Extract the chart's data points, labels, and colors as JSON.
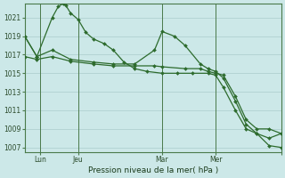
{
  "background_color": "#cce8e8",
  "grid_color": "#aacccc",
  "line_color": "#2d6b2d",
  "marker_color": "#2d6b2d",
  "xlabel": "Pression niveau de la mer( hPa )",
  "ylim": [
    1006.5,
    1022.5
  ],
  "yticks": [
    1007,
    1009,
    1011,
    1013,
    1015,
    1017,
    1019,
    1021
  ],
  "xlim": [
    0,
    168
  ],
  "xtick_positions": [
    10,
    35,
    90,
    125,
    168
  ],
  "xtick_labels": [
    "Lun",
    "Jeu",
    "Mar",
    "Mer",
    ""
  ],
  "vlines_x": [
    10,
    35,
    90,
    125
  ],
  "vline_color": "#4a7a4a",
  "series": [
    {
      "x": [
        0,
        8,
        18,
        22,
        25,
        27,
        30,
        35,
        40,
        45,
        52,
        58,
        65,
        72,
        80,
        90,
        100,
        110,
        120,
        125,
        130,
        138,
        145,
        152,
        160,
        168
      ],
      "y": [
        1019.0,
        1016.8,
        1021.0,
        1022.2,
        1022.5,
        1022.3,
        1021.5,
        1020.8,
        1019.4,
        1018.7,
        1018.2,
        1017.5,
        1016.2,
        1015.5,
        1015.2,
        1015.0,
        1015.0,
        1015.0,
        1015.0,
        1014.8,
        1013.5,
        1011.0,
        1009.0,
        1008.5,
        1007.2,
        1007.0
      ]
    },
    {
      "x": [
        0,
        8,
        18,
        30,
        45,
        58,
        72,
        85,
        90,
        98,
        105,
        115,
        120,
        125,
        130,
        138,
        145,
        152,
        160,
        168
      ],
      "y": [
        1019.0,
        1016.8,
        1017.5,
        1016.5,
        1016.2,
        1016.0,
        1016.0,
        1017.5,
        1019.5,
        1019.0,
        1018.0,
        1016.0,
        1015.5,
        1015.2,
        1014.5,
        1012.0,
        1009.5,
        1008.5,
        1008.0,
        1008.5
      ]
    },
    {
      "x": [
        0,
        8,
        18,
        30,
        45,
        58,
        72,
        85,
        90,
        105,
        115,
        120,
        125,
        130,
        138,
        145,
        152,
        160,
        168
      ],
      "y": [
        1016.8,
        1016.5,
        1016.8,
        1016.3,
        1016.0,
        1015.8,
        1015.8,
        1015.8,
        1015.7,
        1015.5,
        1015.5,
        1015.2,
        1015.0,
        1014.8,
        1012.5,
        1010.0,
        1009.0,
        1009.0,
        1008.5
      ]
    }
  ]
}
